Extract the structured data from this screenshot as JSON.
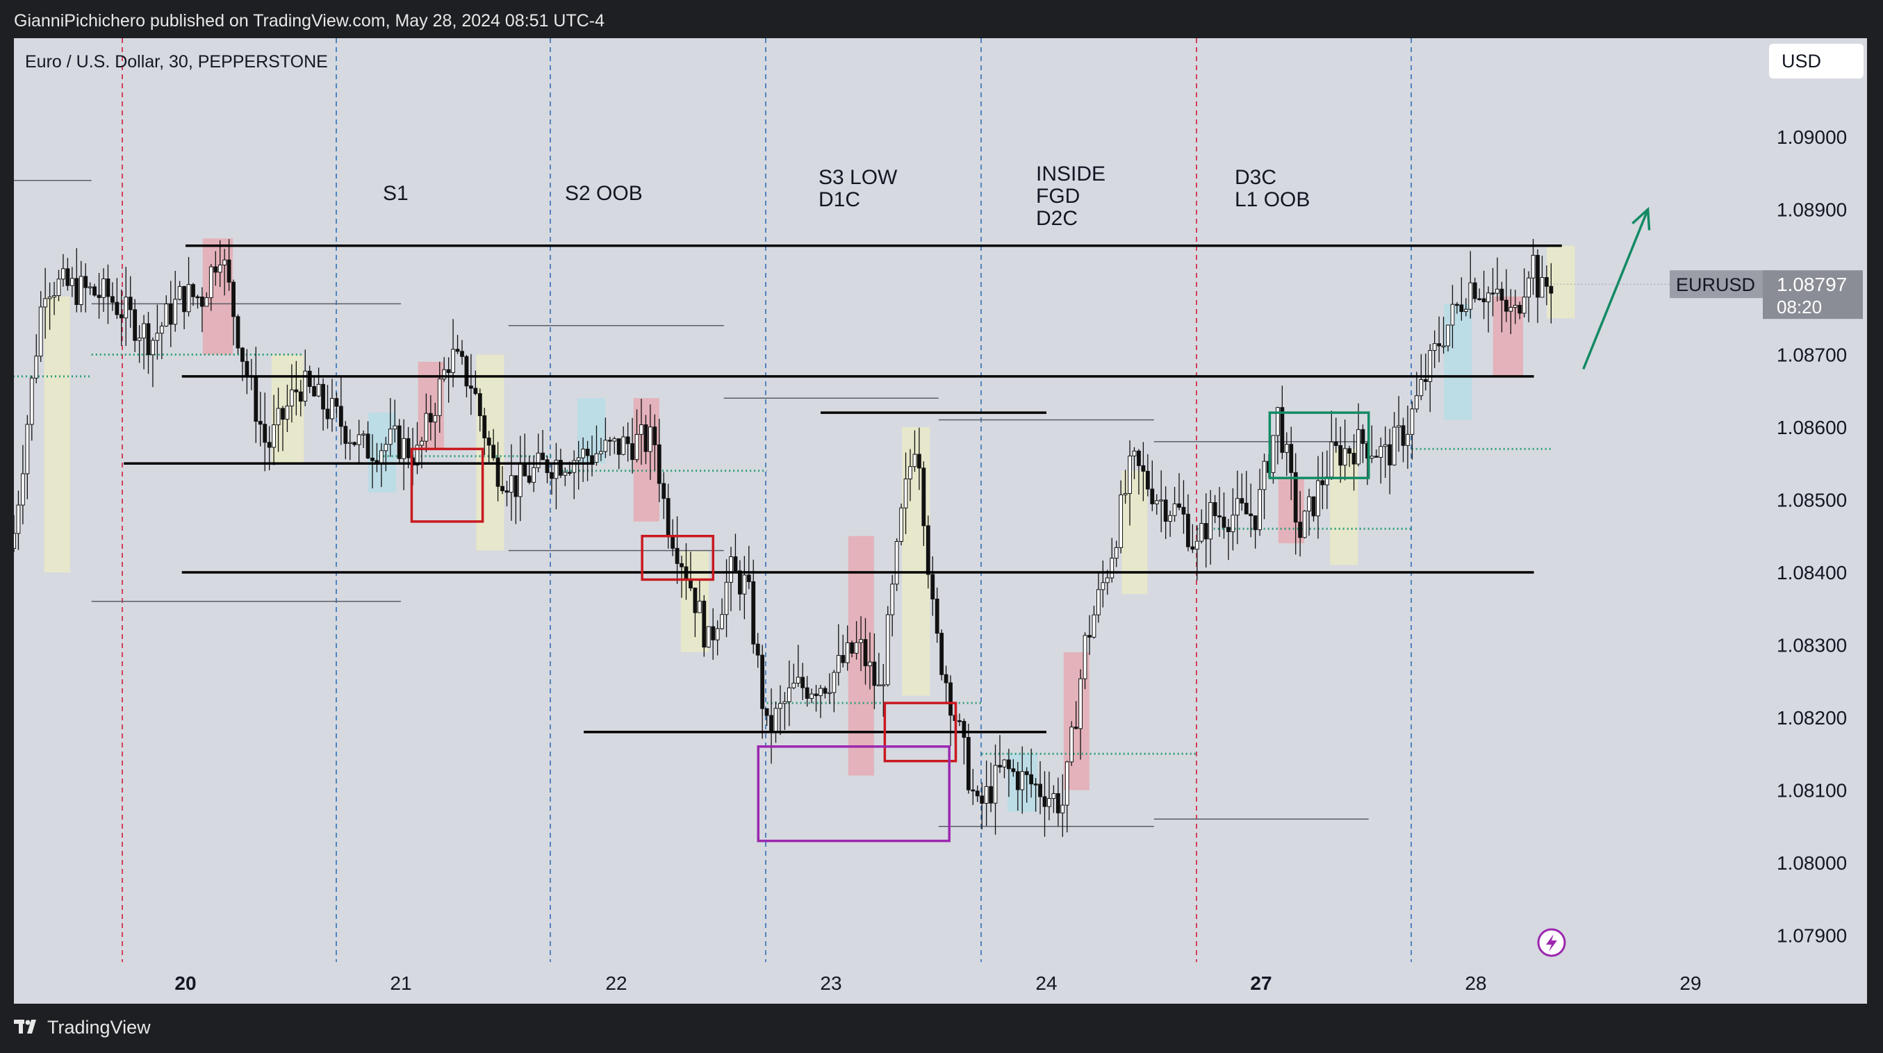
{
  "header": {
    "publish_line": "GianniPichichero published on TradingView.com, May 28, 2024 08:51 UTC-4"
  },
  "footer": {
    "brand": "TradingView"
  },
  "chart": {
    "symbol_line": "Euro / U.S. Dollar, 30, PEPPERSTONE",
    "currency": "USD",
    "ticker": "EURUSD",
    "last_price": "1.08797",
    "countdown": "08:20"
  },
  "colors": {
    "background": "#d6d9e0",
    "frame": "#1e1f23",
    "candle": "#111111",
    "session_divider": "#2f6fb5",
    "week_divider": "#d0405a",
    "level_line": "#000000",
    "mid_level_dotted": "#2e9e7a",
    "box_red": "#c8191f",
    "box_purple": "#9c27b0",
    "box_green": "#138a64",
    "arrow": "#138a64",
    "zone_red": "#e8a4ae",
    "zone_yellow": "#ecebc4",
    "zone_blue": "#b3dce8",
    "price_tag": "#9b9ea6"
  },
  "chart_data": {
    "type": "candlestick",
    "title": "Euro / U.S. Dollar, 30, PEPPERSTONE",
    "xlabel": "",
    "ylabel": "",
    "ylim": [
      1.0785,
      1.0913
    ],
    "y_ticks": [
      "1.09000",
      "1.08900",
      "1.08800",
      "1.08700",
      "1.08600",
      "1.08500",
      "1.08400",
      "1.08300",
      "1.08200",
      "1.08100",
      "1.08000",
      "1.07900"
    ],
    "x_ticks": [
      "20",
      "21",
      "22",
      "23",
      "24",
      "27",
      "28",
      "29"
    ],
    "x_ticks_bold": [
      "20",
      "27"
    ],
    "grid": false,
    "session_labels": [
      {
        "day": "21",
        "lines": [
          "S1"
        ]
      },
      {
        "day": "22",
        "lines": [
          "S2 OOB"
        ]
      },
      {
        "day": "23",
        "lines": [
          "S3 LOW",
          "D1C"
        ]
      },
      {
        "day": "24",
        "lines": [
          "INSIDE",
          "FGD",
          "D2C"
        ]
      },
      {
        "day": "27",
        "lines": [
          "D3C",
          "L1 OOB"
        ]
      }
    ],
    "price_path": [
      [
        "19",
        1.0847
      ],
      [
        "19.15",
        1.0843
      ],
      [
        "19.3",
        1.088
      ],
      [
        "19.6",
        1.0878
      ],
      [
        "19.8",
        1.0872
      ],
      [
        "20",
        1.0878
      ],
      [
        "20.1",
        1.0878
      ],
      [
        "20.18",
        1.0885
      ],
      [
        "20.3",
        1.0868
      ],
      [
        "20.4",
        1.0857
      ],
      [
        "20.55",
        1.0866
      ],
      [
        "20.7",
        1.0862
      ],
      [
        "20.85",
        1.0857
      ],
      [
        "21",
        1.0858
      ],
      [
        "21.1",
        1.0856
      ],
      [
        "21.25",
        1.087
      ],
      [
        "21.35",
        1.0866
      ],
      [
        "21.45",
        1.0855
      ],
      [
        "21.55",
        1.0852
      ],
      [
        "21.7",
        1.0855
      ],
      [
        "21.85",
        1.0856
      ],
      [
        "22",
        1.0857
      ],
      [
        "22.1",
        1.0858
      ],
      [
        "22.2",
        1.0858
      ],
      [
        "22.25",
        1.0848
      ],
      [
        "22.35",
        1.084
      ],
      [
        "22.45",
        1.083
      ],
      [
        "22.55",
        1.084
      ],
      [
        "22.63",
        1.0838
      ],
      [
        "22.72",
        1.0818
      ],
      [
        "22.85",
        1.0824
      ],
      [
        "23",
        1.0825
      ],
      [
        "23.15",
        1.083
      ],
      [
        "23.25",
        1.0823
      ],
      [
        "23.35",
        1.0848
      ],
      [
        "23.42",
        1.086
      ],
      [
        "23.5",
        1.0832
      ],
      [
        "23.6",
        1.082
      ],
      [
        "23.7",
        1.0807
      ],
      [
        "23.82",
        1.0813
      ],
      [
        "24",
        1.081
      ],
      [
        "24.1",
        1.0808
      ],
      [
        "24.2",
        1.083
      ],
      [
        "24.3",
        1.084
      ],
      [
        "24.42",
        1.0855
      ],
      [
        "24.55",
        1.085
      ],
      [
        "24.65",
        1.0848
      ],
      [
        "24.72",
        1.0843
      ],
      [
        "24.78",
        1.0848
      ],
      [
        "27",
        1.0848
      ],
      [
        "27.1",
        1.0862
      ],
      [
        "27.2",
        1.0845
      ],
      [
        "27.35",
        1.0856
      ],
      [
        "27.5",
        1.0858
      ],
      [
        "27.6",
        1.0856
      ],
      [
        "27.7",
        1.086
      ],
      [
        "27.85",
        1.0872
      ],
      [
        "28",
        1.088
      ],
      [
        "28.1",
        1.0878
      ],
      [
        "28.2",
        1.0875
      ],
      [
        "28.28",
        1.0884
      ],
      [
        "28.32",
        1.0878
      ],
      [
        "28.36",
        1.088
      ]
    ],
    "levels": [
      {
        "from": "20",
        "to": "28.4",
        "price": 1.0885,
        "style": "bold"
      },
      {
        "from": "19.65",
        "to": "21.9",
        "price": 1.0855,
        "style": "bold"
      },
      {
        "from": "21.85",
        "to": "24",
        "price": 1.0818,
        "style": "bold"
      },
      {
        "from": "22.95",
        "to": "24",
        "price": 1.0862,
        "style": "bold"
      },
      {
        "from": "26.92",
        "to": "28.27",
        "price": 1.0867,
        "style": "bold"
      },
      {
        "from": "26.92",
        "to": "28.27",
        "price": 1.084,
        "style": "bold"
      },
      {
        "from": "19",
        "to": "19.5",
        "price": 1.0894,
        "style": "thin"
      },
      {
        "from": "19.5",
        "to": "21",
        "price": 1.0877,
        "style": "thin"
      },
      {
        "from": "19.5",
        "to": "21",
        "price": 1.0836,
        "style": "thin"
      },
      {
        "from": "21.5",
        "to": "22.5",
        "price": 1.0874,
        "style": "thin"
      },
      {
        "from": "21.5",
        "to": "22.5",
        "price": 1.0843,
        "style": "thin"
      },
      {
        "from": "22.5",
        "to": "23.5",
        "price": 1.0864,
        "style": "thin"
      },
      {
        "from": "23.5",
        "to": "24.5",
        "price": 1.0861,
        "style": "thin"
      },
      {
        "from": "23.5",
        "to": "24.5",
        "price": 1.0805,
        "style": "thin"
      },
      {
        "from": "24.5",
        "to": "27.5",
        "price": 1.0858,
        "style": "thin"
      },
      {
        "from": "24.5",
        "to": "27.5",
        "price": 1.0806,
        "style": "thin"
      }
    ],
    "dotted_levels": [
      {
        "from": "19",
        "to": "19.5",
        "price": 1.0867
      },
      {
        "from": "19.5",
        "to": "20.55",
        "price": 1.087
      },
      {
        "from": "20.9",
        "to": "21.7",
        "price": 1.0856
      },
      {
        "from": "21.75",
        "to": "22.7",
        "price": 1.0854
      },
      {
        "from": "22.7",
        "to": "23.7",
        "price": 1.0822
      },
      {
        "from": "23.7",
        "to": "24.7",
        "price": 1.0815
      },
      {
        "from": "24.7",
        "to": "27.7",
        "price": 1.0846
      },
      {
        "from": "27.7",
        "to": "28.35",
        "price": 1.0857
      }
    ],
    "boxes": [
      {
        "from": "21.05",
        "to": "21.38",
        "high": 1.0857,
        "low": 1.0847,
        "color": "red"
      },
      {
        "from": "22.12",
        "to": "22.45",
        "high": 1.0845,
        "low": 1.0839,
        "color": "red"
      },
      {
        "from": "23.25",
        "to": "23.58",
        "high": 1.0822,
        "low": 1.0814,
        "color": "red"
      },
      {
        "from": "22.66",
        "to": "23.55",
        "high": 1.0816,
        "low": 1.0803,
        "color": "purple"
      },
      {
        "from": "27.04",
        "to": "27.5",
        "high": 1.0862,
        "low": 1.0853,
        "color": "green"
      }
    ],
    "zones": [
      {
        "from": "19.28",
        "to": "19.4",
        "high": 1.0878,
        "low": 1.084,
        "color": "yellow"
      },
      {
        "from": "20.08",
        "to": "20.22",
        "high": 1.0886,
        "low": 1.087,
        "color": "red"
      },
      {
        "from": "20.4",
        "to": "20.55",
        "high": 1.087,
        "low": 1.0855,
        "color": "yellow"
      },
      {
        "from": "20.85",
        "to": "20.98",
        "high": 1.0862,
        "low": 1.0851,
        "color": "blue"
      },
      {
        "from": "21.08",
        "to": "21.2",
        "high": 1.0869,
        "low": 1.0857,
        "color": "red"
      },
      {
        "from": "21.35",
        "to": "21.48",
        "high": 1.087,
        "low": 1.0843,
        "color": "yellow"
      },
      {
        "from": "21.82",
        "to": "21.95",
        "high": 1.0864,
        "low": 1.0855,
        "color": "blue"
      },
      {
        "from": "22.08",
        "to": "22.2",
        "high": 1.0864,
        "low": 1.0847,
        "color": "red"
      },
      {
        "from": "22.3",
        "to": "22.43",
        "high": 1.0843,
        "low": 1.0829,
        "color": "yellow"
      },
      {
        "from": "23.08",
        "to": "23.2",
        "high": 1.0845,
        "low": 1.0812,
        "color": "red"
      },
      {
        "from": "23.33",
        "to": "23.46",
        "high": 1.086,
        "low": 1.0823,
        "color": "yellow"
      },
      {
        "from": "23.82",
        "to": "23.96",
        "high": 1.0815,
        "low": 1.0807,
        "color": "blue"
      },
      {
        "from": "24.08",
        "to": "24.2",
        "high": 1.0829,
        "low": 1.081,
        "color": "red"
      },
      {
        "from": "24.35",
        "to": "24.47",
        "high": 1.0854,
        "low": 1.0837,
        "color": "yellow"
      },
      {
        "from": "27.08",
        "to": "27.2",
        "high": 1.0853,
        "low": 1.0844,
        "color": "red"
      },
      {
        "from": "27.32",
        "to": "27.45",
        "high": 1.0857,
        "low": 1.0841,
        "color": "yellow"
      },
      {
        "from": "27.85",
        "to": "27.98",
        "high": 1.0877,
        "low": 1.0861,
        "color": "blue"
      },
      {
        "from": "28.08",
        "to": "28.22",
        "high": 1.0878,
        "low": 1.0867,
        "color": "red"
      },
      {
        "from": "28.33",
        "to": "28.46",
        "high": 1.0885,
        "low": 1.0875,
        "color": "yellow"
      }
    ],
    "arrow": {
      "from": [
        "28.5",
        1.0868
      ],
      "to": [
        "28.8",
        1.089
      ]
    },
    "current_price": 1.08797
  }
}
